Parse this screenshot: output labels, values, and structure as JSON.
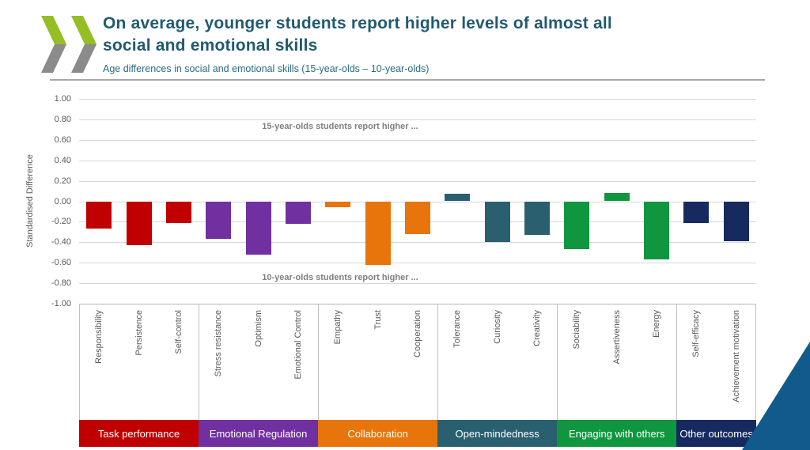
{
  "header": {
    "title_line1": "On average, younger students report higher levels of almost all",
    "title_line2": "social and emotional skills",
    "subtitle": "Age differences in social and emotional skills (15-year-olds – 10-year-olds)",
    "colors": {
      "title_teal": "#215b70",
      "logo_green": "#95be26",
      "logo_gray": "#8b8b8b",
      "corner_blue": "#115a8c",
      "header_rule_gray": "#a8a8a8"
    }
  },
  "chart_data": {
    "type": "bar",
    "ylabel": "Standardised Difference",
    "ylim": [
      -1.0,
      1.0
    ],
    "ytick_step": 0.2,
    "ytick_labels": [
      "1.00",
      "0.80",
      "0.60",
      "0.40",
      "0.20",
      "0.00",
      "-0.20",
      "-0.40",
      "-0.60",
      "-0.80",
      "-1.00"
    ],
    "grid": true,
    "legend": "none",
    "annotations": {
      "positive": "15-year-olds students report higher ...",
      "negative": "10-year-olds students report higher ..."
    },
    "groups": [
      {
        "label": "Task performance",
        "color": "#c00000",
        "skills": [
          {
            "name": "Responsibility",
            "value": -0.27
          },
          {
            "name": "Persistence",
            "value": -0.43
          },
          {
            "name": "Self-control",
            "value": -0.21
          }
        ]
      },
      {
        "label": "Emotional Regulation",
        "color": "#7030a0",
        "skills": [
          {
            "name": "Stress resistance",
            "value": -0.37
          },
          {
            "name": "Optimism",
            "value": -0.52
          },
          {
            "name": "Emotional Control",
            "value": -0.22
          }
        ]
      },
      {
        "label": "Collaboration",
        "color": "#e8740c",
        "skills": [
          {
            "name": "Empathy",
            "value": -0.06
          },
          {
            "name": "Trust",
            "value": -0.62
          },
          {
            "name": "Cooperation",
            "value": -0.32
          }
        ]
      },
      {
        "label": "Open-mindedness",
        "color": "#2a5f6f",
        "skills": [
          {
            "name": "Tolerance",
            "value": 0.07
          },
          {
            "name": "Curiosity",
            "value": -0.4
          },
          {
            "name": "Creativity",
            "value": -0.33
          }
        ]
      },
      {
        "label": "Engaging with others",
        "color": "#10963e",
        "skills": [
          {
            "name": "Sociability",
            "value": -0.47
          },
          {
            "name": "Assertiveness",
            "value": 0.08
          },
          {
            "name": "Energy",
            "value": -0.57
          }
        ]
      },
      {
        "label": "Other outcomes",
        "color": "#162a60",
        "skills": [
          {
            "name": "Self-efficacy",
            "value": -0.21
          },
          {
            "name": "Achievement motivation",
            "value": -0.39
          }
        ]
      }
    ]
  }
}
